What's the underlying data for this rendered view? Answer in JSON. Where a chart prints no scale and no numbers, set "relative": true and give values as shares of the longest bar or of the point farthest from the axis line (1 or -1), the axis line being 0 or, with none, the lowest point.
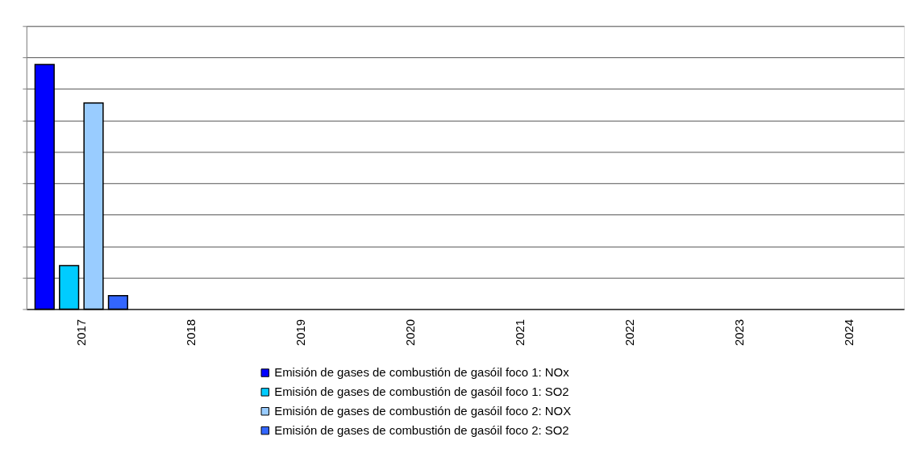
{
  "chart_data": {
    "type": "bar",
    "relative": true,
    "grid": "y",
    "legend": "bottom",
    "categories": [
      "2017",
      "2018",
      "2019",
      "2020",
      "2021",
      "2022",
      "2023",
      "2024"
    ],
    "series": [
      {
        "name": "Emisión de gases de combustión de gasóil foco 1: NOx",
        "color": "#0000ff",
        "values": [
          1,
          null,
          null,
          null,
          null,
          null,
          null,
          null
        ]
      },
      {
        "name": "Emisión de gases de combustión de gasóil foco 1: SO2",
        "color": "#00ccff",
        "values": [
          0.178,
          null,
          null,
          null,
          null,
          null,
          null,
          null
        ]
      },
      {
        "name": "Emisión de gases de combustión de gasóil foco 2: NOX",
        "color": "#99ccff",
        "values": [
          0.843,
          null,
          null,
          null,
          null,
          null,
          null,
          null
        ]
      },
      {
        "name": "Emisión de gases de combustión de gasóil foco 2: SO2",
        "color": "#3366ff",
        "values": [
          0.055,
          null,
          null,
          null,
          null,
          null,
          null,
          null
        ]
      }
    ]
  }
}
